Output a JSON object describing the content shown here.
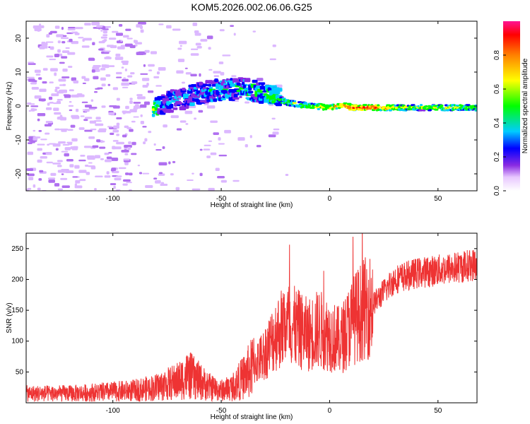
{
  "title": "KOM5.2026.002.06.06.G25",
  "colors": {
    "axes": "#000000",
    "snr_line": "#ee3333",
    "colormap": [
      "#ffffff",
      "#e8c8ff",
      "#c080ff",
      "#8a2be2",
      "#0000ff",
      "#00ccff",
      "#00ff00",
      "#ffff00",
      "#ff8000",
      "#ff0000",
      "#ff1493"
    ]
  },
  "chart_data": [
    {
      "type": "heatmap",
      "xlabel": "Height of straight line (km)",
      "ylabel": "Frequency (Hz)",
      "xlim": [
        -140,
        68
      ],
      "ylim": [
        -25,
        25
      ],
      "x_ticks": [
        -100,
        -50,
        0,
        50
      ],
      "y_ticks": [
        -20,
        -10,
        0,
        10,
        20
      ],
      "colorbar": {
        "label": "Normalized spectral amplitude",
        "range": [
          0,
          1
        ],
        "ticks": [
          "0.0",
          "0.2",
          "0.4",
          "0.6",
          "0.8"
        ]
      },
      "ridge": [
        {
          "x": -80,
          "y": 0.5,
          "amp": 0.2
        },
        {
          "x": -70,
          "y": 2.0,
          "amp": 0.22
        },
        {
          "x": -60,
          "y": 4.0,
          "amp": 0.25
        },
        {
          "x": -50,
          "y": 5.0,
          "amp": 0.28
        },
        {
          "x": -40,
          "y": 5.0,
          "amp": 0.3
        },
        {
          "x": -30,
          "y": 3.5,
          "amp": 0.35
        },
        {
          "x": -20,
          "y": 1.0,
          "amp": 0.45
        },
        {
          "x": -10,
          "y": 0.0,
          "amp": 0.55
        },
        {
          "x": 0,
          "y": -0.5,
          "amp": 0.6
        },
        {
          "x": 5,
          "y": 0.3,
          "amp": 0.75
        },
        {
          "x": 10,
          "y": -0.5,
          "amp": 0.8
        },
        {
          "x": 20,
          "y": -0.5,
          "amp": 0.9
        },
        {
          "x": 30,
          "y": -0.5,
          "amp": 0.55
        },
        {
          "x": 40,
          "y": -0.5,
          "amp": 0.5
        },
        {
          "x": 50,
          "y": -0.5,
          "amp": 0.5
        },
        {
          "x": 68,
          "y": -0.5,
          "amp": 0.5
        }
      ]
    },
    {
      "type": "line",
      "xlabel": "Height of straight line (km)",
      "ylabel": "SNR (v/v)",
      "xlim": [
        -140,
        68
      ],
      "ylim": [
        0,
        275
      ],
      "x_ticks": [
        -100,
        -50,
        0,
        50
      ],
      "y_ticks": [
        50,
        100,
        150,
        200,
        250
      ],
      "series": [
        {
          "x": [
            -140,
            -120,
            -100,
            -90,
            -80,
            -70,
            -65,
            -60,
            -55,
            -50,
            -45,
            -40,
            -35,
            -30,
            -25,
            -20,
            -15,
            -10,
            -5,
            0,
            5,
            10,
            15,
            20,
            25,
            30,
            40,
            50,
            60,
            68
          ],
          "y": [
            15,
            15,
            18,
            20,
            25,
            35,
            45,
            35,
            25,
            20,
            25,
            40,
            60,
            80,
            110,
            130,
            120,
            110,
            120,
            110,
            100,
            130,
            150,
            160,
            180,
            200,
            210,
            215,
            220,
            225
          ]
        }
      ]
    }
  ]
}
